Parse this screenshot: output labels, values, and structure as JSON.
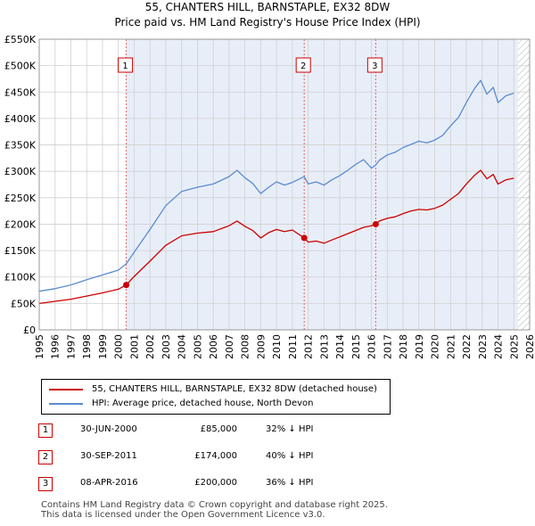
{
  "chart_data": {
    "type": "line",
    "title": "55, CHANTERS HILL, BARNSTAPLE, EX32 8DW",
    "subtitle": "Price paid vs. HM Land Registry's House Price Index (HPI)",
    "xlabel": "",
    "ylabel": "",
    "xlim": [
      1995,
      2026
    ],
    "ylim": [
      0,
      550000
    ],
    "x_ticks": [
      "1995",
      "1996",
      "1997",
      "1998",
      "1999",
      "2000",
      "2001",
      "2002",
      "2003",
      "2004",
      "2005",
      "2006",
      "2007",
      "2008",
      "2009",
      "2010",
      "2011",
      "2012",
      "2013",
      "2014",
      "2015",
      "2016",
      "2017",
      "2018",
      "2019",
      "2020",
      "2021",
      "2022",
      "2023",
      "2024",
      "2025",
      "2026"
    ],
    "y_ticks": [
      {
        "value": 0,
        "label": "£0"
      },
      {
        "value": 50000,
        "label": "£50K"
      },
      {
        "value": 100000,
        "label": "£100K"
      },
      {
        "value": 150000,
        "label": "£150K"
      },
      {
        "value": 200000,
        "label": "£200K"
      },
      {
        "value": 250000,
        "label": "£250K"
      },
      {
        "value": 300000,
        "label": "£300K"
      },
      {
        "value": 350000,
        "label": "£350K"
      },
      {
        "value": 400000,
        "label": "£400K"
      },
      {
        "value": 450000,
        "label": "£450K"
      },
      {
        "value": 500000,
        "label": "£500K"
      },
      {
        "value": 550000,
        "label": "£550K"
      }
    ],
    "grid": true,
    "shaded_ranges": [
      [
        2000.5,
        2025.25
      ]
    ],
    "hatched_from": 2025.25,
    "series": [
      {
        "name": "55, CHANTERS HILL, BARNSTAPLE, EX32 8DW (detached house)",
        "color": "#cc0000",
        "x": [
          1995,
          1996,
          1997,
          1998,
          1999,
          2000,
          2000.5,
          2001,
          2002,
          2003,
          2004,
          2005,
          2006,
          2007,
          2007.5,
          2008,
          2008.5,
          2009,
          2009.5,
          2010,
          2010.5,
          2011,
          2011.75,
          2012,
          2012.5,
          2013,
          2013.5,
          2014,
          2014.5,
          2015,
          2015.5,
          2016,
          2016.27,
          2016.5,
          2017,
          2017.5,
          2018,
          2018.5,
          2019,
          2019.5,
          2020,
          2020.5,
          2021,
          2021.5,
          2022,
          2022.5,
          2022.9,
          2023.3,
          2023.7,
          2024,
          2024.5,
          2025
        ],
        "y": [
          50000,
          54000,
          58000,
          64000,
          70000,
          77000,
          85000,
          101000,
          130000,
          160000,
          178000,
          183000,
          186000,
          197000,
          206000,
          196000,
          188000,
          174000,
          184000,
          190000,
          186000,
          189000,
          174000,
          166000,
          168000,
          164000,
          170000,
          176000,
          182000,
          188000,
          194000,
          197000,
          200000,
          206000,
          211000,
          214000,
          220000,
          225000,
          228000,
          227000,
          230000,
          236000,
          247000,
          258000,
          276000,
          292000,
          302000,
          286000,
          294000,
          276000,
          284000,
          287000
        ]
      },
      {
        "name": "HPI: Average price, detached house, North Devon",
        "color": "#5b8bd0",
        "x": [
          1995,
          1996,
          1997,
          1998,
          1999,
          2000,
          2000.5,
          2001,
          2002,
          2003,
          2004,
          2005,
          2006,
          2007,
          2007.5,
          2008,
          2008.5,
          2009,
          2009.5,
          2010,
          2010.5,
          2011,
          2011.75,
          2012,
          2012.5,
          2013,
          2013.5,
          2014,
          2014.5,
          2015,
          2015.5,
          2016,
          2016.27,
          2016.5,
          2017,
          2017.5,
          2018,
          2018.5,
          2019,
          2019.5,
          2020,
          2020.5,
          2021,
          2021.5,
          2022,
          2022.5,
          2022.9,
          2023.3,
          2023.7,
          2024,
          2024.5,
          2025
        ],
        "y": [
          73000,
          78000,
          85000,
          95000,
          104000,
          113000,
          125000,
          147000,
          190000,
          235000,
          262000,
          270000,
          276000,
          290000,
          302000,
          288000,
          277000,
          258000,
          270000,
          280000,
          274000,
          279000,
          290000,
          276000,
          280000,
          274000,
          284000,
          292000,
          302000,
          313000,
          322000,
          306000,
          312000,
          321000,
          331000,
          336000,
          345000,
          351000,
          357000,
          354000,
          359000,
          368000,
          386000,
          402000,
          430000,
          456000,
          472000,
          446000,
          459000,
          430000,
          443000,
          448000
        ]
      }
    ],
    "sales": [
      {
        "num": "1",
        "x": 2000.5,
        "price": 85000,
        "date": "30-JUN-2000",
        "price_label": "£85,000",
        "hpi_label": "32% ↓ HPI"
      },
      {
        "num": "2",
        "x": 2011.75,
        "price": 174000,
        "date": "30-SEP-2011",
        "price_label": "£174,000",
        "hpi_label": "40% ↓ HPI"
      },
      {
        "num": "3",
        "x": 2016.27,
        "price": 200000,
        "date": "08-APR-2016",
        "price_label": "£200,000",
        "hpi_label": "36% ↓ HPI"
      }
    ],
    "legend": {
      "property": "55, CHANTERS HILL, BARNSTAPLE, EX32 8DW (detached house)",
      "hpi": "HPI: Average price, detached house, North Devon"
    },
    "footer": {
      "line1": "Contains HM Land Registry data © Crown copyright and database right 2025.",
      "line2": "This data is licensed under the Open Government Licence v3.0."
    },
    "colors": {
      "property": "#cc0000",
      "hpi": "#5b8bd0",
      "shade": "#e8eef8",
      "grid": "#d0d0d0"
    }
  }
}
